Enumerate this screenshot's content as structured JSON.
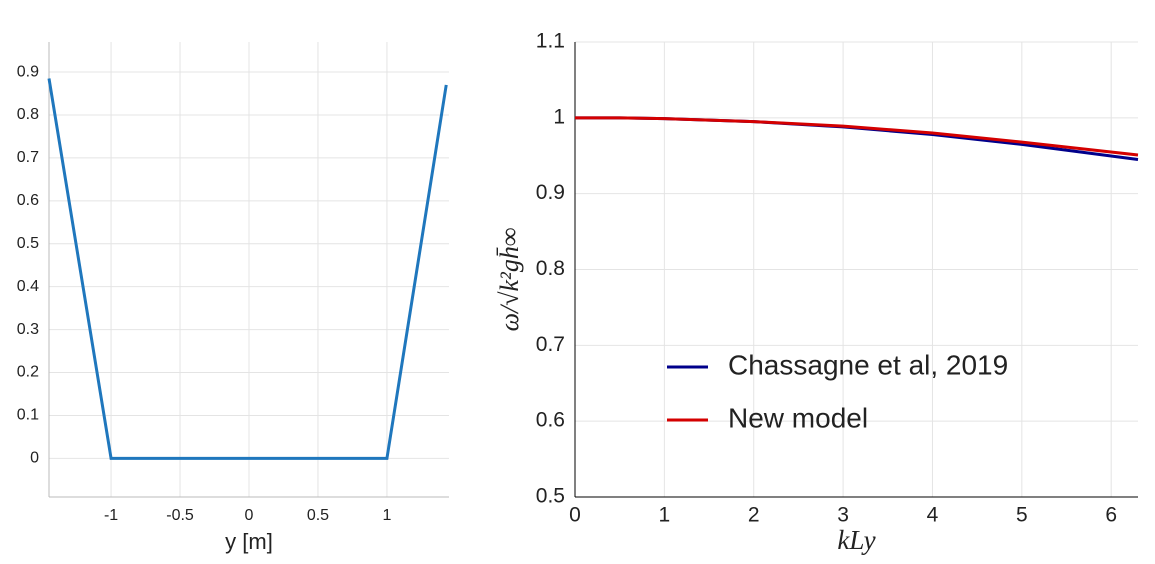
{
  "chart_data": [
    {
      "type": "line",
      "x_label": "y [m]",
      "x": [
        -1.45,
        -1,
        1,
        1.43
      ],
      "series": [
        {
          "color": "#1f77bd",
          "values": [
            0.885,
            0,
            0,
            0.87
          ]
        }
      ],
      "xlim": [
        -1.45,
        1.45
      ],
      "ylim": [
        -0.09,
        0.97
      ],
      "xticks": [
        -1,
        -0.5,
        0,
        0.5,
        1
      ],
      "yticks": [
        0,
        0.1,
        0.2,
        0.3,
        0.4,
        0.5,
        0.6,
        0.7,
        0.8,
        0.9
      ],
      "grid": true
    },
    {
      "type": "line",
      "x_label": "kLy",
      "y_label": "ω/√k²gh̄∞",
      "x": [
        0,
        0.5,
        1,
        2,
        3,
        4,
        5,
        6.3
      ],
      "series": [
        {
          "name": "Chassagne et al, 2019",
          "color": "#00008b",
          "values": [
            1.0,
            1.0,
            0.999,
            0.995,
            0.988,
            0.978,
            0.965,
            0.945
          ]
        },
        {
          "name": "New model",
          "color": "#d40000",
          "values": [
            1.0,
            1.0,
            0.999,
            0.995,
            0.989,
            0.98,
            0.968,
            0.951
          ]
        }
      ],
      "xlim": [
        0,
        6.3
      ],
      "ylim": [
        0.5,
        1.1
      ],
      "xticks": [
        0,
        1,
        2,
        3,
        4,
        5,
        6
      ],
      "yticks": [
        0.5,
        0.6,
        0.7,
        0.8,
        0.9,
        1,
        1.1
      ],
      "grid": true
    }
  ]
}
